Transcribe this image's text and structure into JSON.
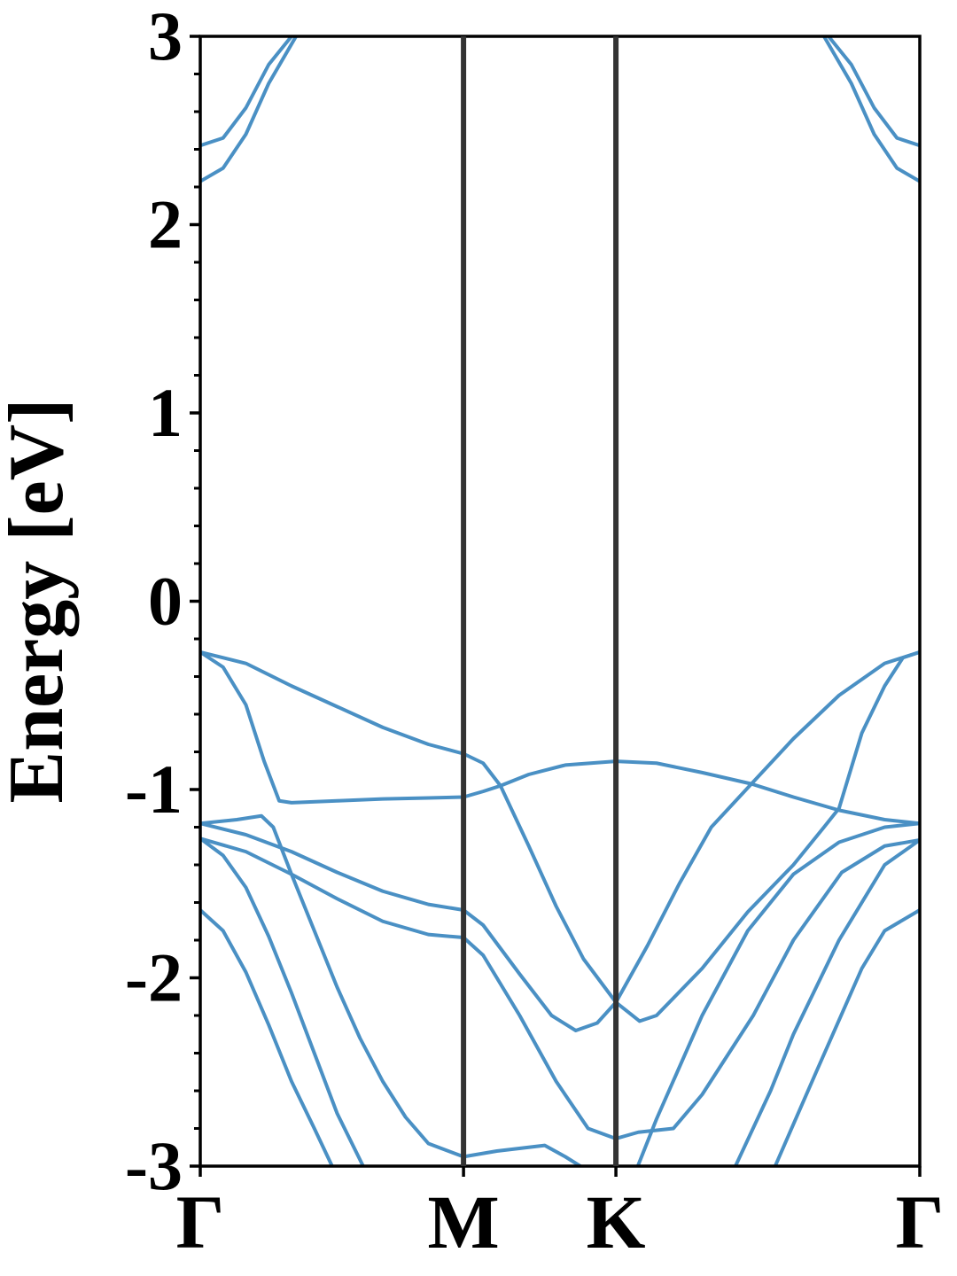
{
  "chart_data": {
    "type": "line",
    "ylabel": "Energy [eV]",
    "xlim": [
      0,
      1.577
    ],
    "ylim": [
      -3,
      3
    ],
    "xticks": [
      {
        "value": 0,
        "label": "Γ"
      },
      {
        "value": 0.577,
        "label": "M"
      },
      {
        "value": 0.911,
        "label": "K"
      },
      {
        "value": 1.577,
        "label": "Γ"
      }
    ],
    "yticks": [
      -3,
      -2,
      -1,
      0,
      1,
      2,
      3
    ],
    "minor_yticks": [
      -2.8,
      -2.6,
      -2.4,
      -2.2,
      -1.8,
      -1.6,
      -1.4,
      -1.2,
      -0.8,
      -0.6,
      -0.4,
      -0.2,
      0.2,
      0.4,
      0.6,
      0.8,
      1.2,
      1.4,
      1.6,
      1.8,
      2.2,
      2.4,
      2.6,
      2.8
    ],
    "vertical_lines_at_ticks": true,
    "series": [
      {
        "color": "#4a90c4",
        "x": [
          0,
          0.1,
          0.2,
          0.3,
          0.4,
          0.5,
          0.577,
          0.62,
          0.658,
          0.72,
          0.78,
          0.84,
          0.911,
          0.963,
          1.0,
          1.1,
          1.2,
          1.3,
          1.367,
          1.4,
          1.45,
          1.5,
          1.54,
          1.577
        ],
        "values": [
          -0.27,
          -0.33,
          -0.45,
          -0.56,
          -0.67,
          -0.76,
          -0.81,
          -0.86,
          -0.98,
          -1.3,
          -1.62,
          -1.9,
          -2.13,
          -2.23,
          -2.2,
          -1.95,
          -1.65,
          -1.4,
          -1.2,
          -1.1,
          -0.7,
          -0.45,
          -0.3,
          -0.27
        ]
      },
      {
        "color": "#4a90c4",
        "x": [
          0,
          0.1,
          0.2,
          0.3,
          0.4,
          0.5,
          0.577,
          0.62,
          0.7,
          0.77,
          0.823,
          0.87,
          0.911,
          0.98,
          1.05,
          1.12,
          1.208,
          1.3,
          1.4,
          1.5,
          1.577
        ],
        "values": [
          -1.18,
          -1.24,
          -1.33,
          -1.44,
          -1.54,
          -1.61,
          -1.64,
          -1.72,
          -1.98,
          -2.2,
          -2.28,
          -2.24,
          -2.13,
          -1.83,
          -1.5,
          -1.2,
          -0.97,
          -0.73,
          -0.5,
          -0.33,
          -0.27
        ]
      },
      {
        "color": "#4a90c4",
        "x": [
          0,
          0.05,
          0.1,
          0.14,
          0.173,
          0.2,
          0.3,
          0.4,
          0.5,
          0.577,
          0.62,
          0.658,
          0.72,
          0.8,
          0.911,
          1.0,
          1.1,
          1.208,
          1.3,
          1.4,
          1.5,
          1.577
        ],
        "values": [
          -0.27,
          -0.35,
          -0.55,
          -0.85,
          -1.06,
          -1.07,
          -1.06,
          -1.05,
          -1.045,
          -1.04,
          -1.01,
          -0.98,
          -0.92,
          -0.87,
          -0.85,
          -0.86,
          -0.91,
          -0.97,
          -1.04,
          -1.11,
          -1.16,
          -1.18
        ]
      },
      {
        "color": "#4a90c4",
        "x": [
          0,
          0.08,
          0.134,
          0.16,
          0.2,
          0.25,
          0.3,
          0.35,
          0.4,
          0.45,
          0.5,
          0.577,
          0.65,
          0.755,
          0.8,
          0.833
        ],
        "values": [
          -1.18,
          -1.16,
          -1.14,
          -1.2,
          -1.45,
          -1.75,
          -2.05,
          -2.32,
          -2.55,
          -2.74,
          -2.88,
          -2.95,
          -2.92,
          -2.89,
          -2.95,
          -3.0
        ]
      },
      {
        "color": "#4a90c4",
        "x": [
          0,
          0.1,
          0.2,
          0.3,
          0.4,
          0.5,
          0.577,
          0.62,
          0.7,
          0.78,
          0.85,
          0.911,
          0.96,
          1.037,
          1.1,
          1.212,
          1.3,
          1.406,
          1.5,
          1.577
        ],
        "values": [
          -1.26,
          -1.33,
          -1.45,
          -1.58,
          -1.7,
          -1.77,
          -1.786,
          -1.88,
          -2.2,
          -2.55,
          -2.8,
          -2.854,
          -2.82,
          -2.8,
          -2.62,
          -2.2,
          -1.8,
          -1.44,
          -1.3,
          -1.268
        ]
      },
      {
        "color": "#4a90c4",
        "x": [
          0,
          0.05,
          0.1,
          0.15,
          0.2,
          0.25,
          0.3,
          0.357
        ],
        "values": [
          -1.26,
          -1.35,
          -1.52,
          -1.78,
          -2.08,
          -2.4,
          -2.72,
          -3.0
        ]
      },
      {
        "color": "#4a90c4",
        "x": [
          0,
          0.05,
          0.1,
          0.15,
          0.2,
          0.25,
          0.289
        ],
        "values": [
          -1.64,
          -1.75,
          -1.97,
          -2.25,
          -2.55,
          -2.8,
          -3.0
        ]
      },
      {
        "color": "#4a90c4",
        "x": [
          0.959,
          1.0,
          1.1,
          1.2,
          1.3,
          1.4,
          1.5,
          1.577
        ],
        "values": [
          -3.0,
          -2.75,
          -2.2,
          -1.75,
          -1.45,
          -1.28,
          -1.2,
          -1.18
        ]
      },
      {
        "color": "#4a90c4",
        "x": [
          1.173,
          1.25,
          1.3,
          1.4,
          1.5,
          1.577
        ],
        "values": [
          -3.0,
          -2.6,
          -2.3,
          -1.8,
          -1.4,
          -1.268
        ]
      },
      {
        "color": "#4a90c4",
        "x": [
          1.26,
          1.35,
          1.45,
          1.5,
          1.577
        ],
        "values": [
          -3.0,
          -2.5,
          -1.95,
          -1.75,
          -1.64
        ]
      },
      {
        "color": "#4a90c4",
        "x": [
          0,
          0.05,
          0.1,
          0.15,
          0.2
        ],
        "values": [
          2.42,
          2.46,
          2.62,
          2.85,
          3.0
        ]
      },
      {
        "color": "#4a90c4",
        "x": [
          0,
          0.05,
          0.1,
          0.15,
          0.21
        ],
        "values": [
          2.23,
          2.3,
          2.48,
          2.75,
          3.0
        ]
      },
      {
        "color": "#4a90c4",
        "x": [
          1.377,
          1.427,
          1.477,
          1.527,
          1.577
        ],
        "values": [
          3.0,
          2.85,
          2.62,
          2.46,
          2.42
        ]
      },
      {
        "color": "#4a90c4",
        "x": [
          1.367,
          1.427,
          1.477,
          1.527,
          1.577
        ],
        "values": [
          3.0,
          2.75,
          2.48,
          2.3,
          2.23
        ]
      }
    ]
  }
}
